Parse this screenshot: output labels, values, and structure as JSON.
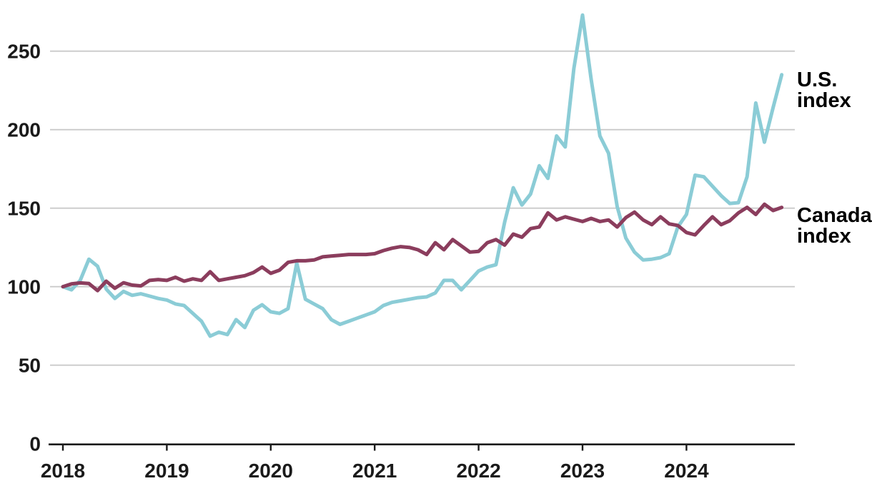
{
  "chart_data": {
    "type": "line",
    "title": "",
    "x_unit": "month",
    "x_start": "2018-01",
    "x_end": "2024-12",
    "points_per_series": 84,
    "x_tick_labels": [
      "2018",
      "2019",
      "2020",
      "2021",
      "2022",
      "2023",
      "2024"
    ],
    "y_tick_labels": [
      "0",
      "50",
      "100",
      "150",
      "200",
      "250"
    ],
    "y_ticks": [
      0,
      50,
      100,
      150,
      200,
      250
    ],
    "ylim": [
      0,
      280
    ],
    "grid": "horizontal",
    "legend_position": "right-of-line-ends",
    "colors": {
      "us_line": "#8bccd6",
      "canada_line": "#8b3d5d",
      "gridline": "#c9c9c9",
      "axis": "#1a1a1a",
      "label_text": "#000000"
    },
    "series": [
      {
        "name": "U.S. index",
        "label_lines": [
          "U.S.",
          "index"
        ],
        "color": "#8bccd6",
        "values": [
          100,
          98,
          104,
          117.5,
          113,
          98.5,
          92.5,
          97,
          94.5,
          95.5,
          94,
          92.5,
          91.5,
          89,
          88,
          83,
          78,
          68.5,
          71,
          69.5,
          79,
          74,
          85,
          88.5,
          84,
          83,
          86,
          115,
          92,
          89,
          86,
          79,
          76,
          78,
          80,
          82,
          84,
          88,
          90,
          91,
          92,
          93,
          93.5,
          96,
          104,
          104,
          98,
          104,
          110,
          112.5,
          114,
          141,
          163,
          152,
          159,
          177,
          169,
          196,
          189,
          239,
          273,
          232,
          196,
          185,
          151,
          131,
          122,
          117,
          117.5,
          118.5,
          121,
          138,
          146,
          171,
          170,
          164,
          158,
          153,
          153.5,
          170,
          217,
          192,
          214,
          235
        ]
      },
      {
        "name": "Canada index",
        "label_lines": [
          "Canada",
          "index"
        ],
        "color": "#8b3d5d",
        "values": [
          100,
          101.8,
          102.4,
          102,
          97.5,
          103.5,
          99,
          102.5,
          101,
          100.5,
          104,
          104.5,
          104,
          106,
          103.5,
          105,
          104,
          109.5,
          104,
          105,
          106,
          107,
          109,
          112.5,
          108.5,
          110.5,
          115.5,
          116.5,
          116.5,
          117,
          119,
          119.5,
          120,
          120.5,
          120.5,
          120.5,
          121,
          123,
          124.5,
          125.5,
          125,
          123.5,
          120.5,
          128,
          123.5,
          130,
          126,
          122,
          122.5,
          128,
          130,
          126.5,
          133.5,
          131.5,
          137,
          138,
          147,
          142.5,
          144.5,
          143,
          141.5,
          143.5,
          141.5,
          142.5,
          138,
          144,
          147.5,
          142.5,
          139.5,
          144.5,
          140,
          139,
          134.5,
          133,
          139,
          144.5,
          139.5,
          142,
          147,
          150.5,
          146,
          152.5,
          148.5,
          150.5
        ]
      }
    ]
  }
}
